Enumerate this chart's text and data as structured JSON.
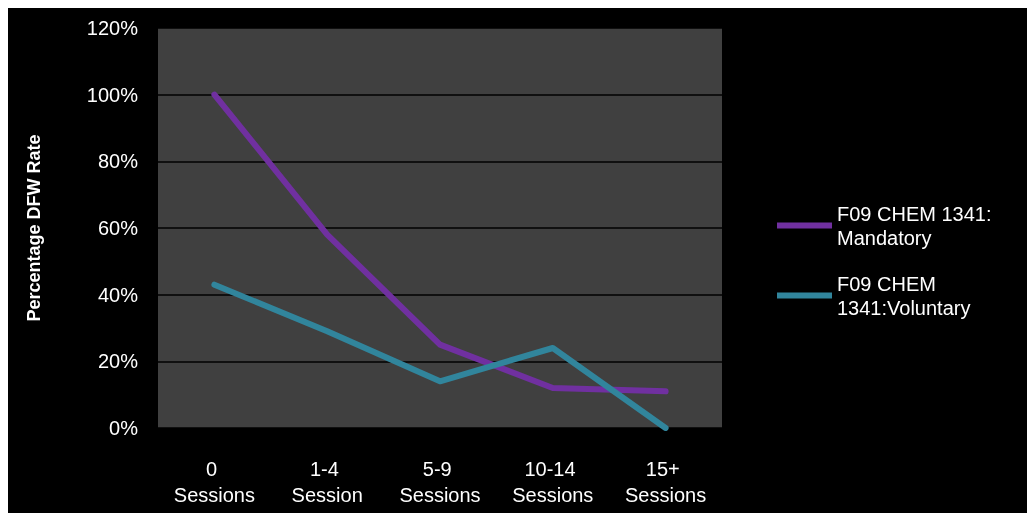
{
  "chart_data": {
    "type": "line",
    "ylabel": "Percentage DFW Rate",
    "categories": [
      "0 Sessions",
      "1-4 Session",
      "5-9 Sessions",
      "10-14 Sessions",
      "15+ Sessions"
    ],
    "series": [
      {
        "name": "F09 CHEM 1341: Mandatory",
        "color": "#7030a0",
        "values": [
          100,
          58,
          25,
          12,
          11
        ]
      },
      {
        "name": "F09 CHEM 1341:Voluntary",
        "color": "#31859c",
        "values": [
          43,
          29,
          14,
          24,
          0
        ]
      }
    ],
    "ylim": [
      0,
      120
    ],
    "yticks": [
      {
        "value": 0,
        "label": "0%"
      },
      {
        "value": 20,
        "label": "20%"
      },
      {
        "value": 40,
        "label": "40%"
      },
      {
        "value": 60,
        "label": "60%"
      },
      {
        "value": 80,
        "label": "80%"
      },
      {
        "value": 100,
        "label": "100%"
      },
      {
        "value": 120,
        "label": "120%"
      }
    ],
    "grid": "y",
    "legend": "right",
    "marker": "none",
    "line_style": "solid"
  }
}
